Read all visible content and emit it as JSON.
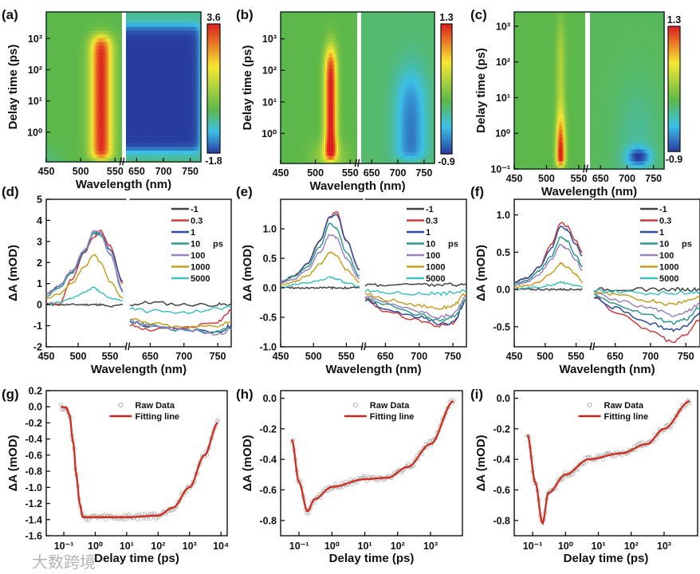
{
  "labels": {
    "wavelength": "Wavelength (nm)",
    "delay": "Delay time (ps)",
    "dA": "ΔA (mOD)",
    "ps": "ps",
    "raw": "Raw Data",
    "fit": "Fitting line",
    "watermark": "大数跨境"
  },
  "series_colors": {
    "-1": "#444444",
    "0.3": "#d63a3a",
    "1": "#2c4ea0",
    "10": "#2a9a88",
    "100": "#9a82c2",
    "1000": "#c8a020",
    "5000": "#3fc2c2"
  },
  "chart_data": [
    {
      "id": "a",
      "type": "heatmap",
      "panel_label": "(a)",
      "xlabel": "Wavelength (nm)",
      "ylabel": "Delay time (ps)",
      "xticks": [
        "450",
        "500",
        "550",
        "650",
        "700",
        "750"
      ],
      "xtick_values": [
        450,
        500,
        550,
        650,
        700,
        750
      ],
      "yticks": [
        "10⁰",
        "10¹",
        "10²",
        "10³"
      ],
      "ytick_values": [
        0,
        1,
        2,
        3
      ],
      "yscale": "log",
      "colorbar": {
        "max": 3.6,
        "min": -1.8,
        "max_label": "3.6",
        "min_label": "-1.8"
      }
    },
    {
      "id": "b",
      "type": "heatmap",
      "panel_label": "(b)",
      "xlabel": "Wavelength (nm)",
      "ylabel": "Delay time (ps)",
      "xticks": [
        "450",
        "500",
        "550",
        "650",
        "700",
        "750"
      ],
      "xtick_values": [
        450,
        500,
        550,
        650,
        700,
        750
      ],
      "yticks": [
        "10⁰",
        "10¹",
        "10²",
        "10³"
      ],
      "ytick_values": [
        0,
        1,
        2,
        3
      ],
      "yscale": "log",
      "colorbar": {
        "max": 1.3,
        "min": -0.9,
        "max_label": "1.3",
        "min_label": "-0.9"
      }
    },
    {
      "id": "c",
      "type": "heatmap",
      "panel_label": "(c)",
      "xlabel": "Wavelength (nm)",
      "ylabel": "Delay time (ps)",
      "xticks": [
        "450",
        "500",
        "550",
        "650",
        "700",
        "750"
      ],
      "xtick_values": [
        450,
        500,
        550,
        650,
        700,
        750
      ],
      "yticks": [
        "10⁻¹",
        "10⁰",
        "10¹",
        "10²",
        "10³"
      ],
      "ytick_values": [
        -1,
        0,
        1,
        2,
        3
      ],
      "yscale": "log",
      "colorbar": {
        "max": 1.3,
        "min": -0.9,
        "max_label": "1.3",
        "min_label": "-0.9"
      }
    },
    {
      "id": "d",
      "type": "line",
      "panel_label": "(d)",
      "xlabel": "Wavelength (nm)",
      "ylabel": "ΔA (mOD)",
      "ylim": [
        -2,
        5
      ],
      "xticks": [
        "450",
        "500",
        "550",
        "650",
        "700",
        "750"
      ],
      "xtick_values": [
        450,
        500,
        550,
        650,
        700,
        750
      ],
      "yticks": [
        "-2",
        "-1",
        "0",
        "1",
        "2",
        "3",
        "4",
        "5"
      ],
      "ytick_values": [
        -2,
        -1,
        0,
        1,
        2,
        3,
        4,
        5
      ],
      "legend_unit": "ps",
      "legend_position": "top-right",
      "x_left": [
        450,
        470,
        490,
        510,
        525,
        535,
        550,
        570
      ],
      "x_right": [
        620,
        650,
        700,
        750,
        770
      ],
      "series": [
        {
          "name": "-1",
          "left": [
            0,
            0,
            0,
            0,
            0,
            0,
            -0.1,
            0
          ],
          "right": [
            0,
            0.1,
            0,
            0,
            0
          ]
        },
        {
          "name": "0.3",
          "left": [
            0.1,
            0,
            1.2,
            2.5,
            3.2,
            3.5,
            2.8,
            1.0
          ],
          "right": [
            -1,
            -1.2,
            -1.1,
            -0.8,
            -0.3
          ]
        },
        {
          "name": "1",
          "left": [
            0.5,
            0.9,
            1.5,
            2.5,
            3.4,
            3.4,
            2.6,
            1.1
          ],
          "right": [
            -0.8,
            -1,
            -1.2,
            -1.3,
            -1.0
          ]
        },
        {
          "name": "10",
          "left": [
            0.4,
            0.8,
            1.5,
            2.6,
            3.4,
            3.3,
            2.4,
            0.6
          ],
          "right": [
            -0.8,
            -1,
            -1.2,
            -1.3,
            -1.1
          ]
        },
        {
          "name": "100",
          "left": [
            0.5,
            0.9,
            1.6,
            2.6,
            3.5,
            3.4,
            2.4,
            0.7
          ],
          "right": [
            -0.8,
            -1,
            -1.2,
            -1.4,
            -1.2
          ]
        },
        {
          "name": "1000",
          "left": [
            0.3,
            0.5,
            1.0,
            1.8,
            2.4,
            2.0,
            1.1,
            0.3
          ],
          "right": [
            -0.7,
            -0.9,
            -1.1,
            -1.0,
            -0.8
          ]
        },
        {
          "name": "5000",
          "left": [
            0,
            0.1,
            0.3,
            0.6,
            0.8,
            0.6,
            0.3,
            0.2
          ],
          "right": [
            -0.2,
            -0.3,
            -0.4,
            -0.2,
            -0.1
          ]
        }
      ]
    },
    {
      "id": "e",
      "type": "line",
      "panel_label": "(e)",
      "xlabel": "Wavelength (nm)",
      "ylabel": "ΔA (mOD)",
      "ylim": [
        -1,
        1.5
      ],
      "xticks": [
        "450",
        "500",
        "550",
        "650",
        "700",
        "750"
      ],
      "xtick_values": [
        450,
        500,
        550,
        650,
        700,
        750
      ],
      "yticks": [
        "-1.0",
        "-0.5",
        "0.0",
        "0.5",
        "1.0"
      ],
      "ytick_values": [
        -1,
        -0.5,
        0,
        0.5,
        1
      ],
      "legend_unit": "ps",
      "legend_position": "top-right",
      "x_left": [
        450,
        470,
        490,
        510,
        525,
        535,
        550,
        570
      ],
      "x_right": [
        620,
        650,
        700,
        730,
        750,
        770
      ],
      "series": [
        {
          "name": "-1",
          "left": [
            0,
            0,
            0,
            0,
            0,
            0,
            0,
            0
          ],
          "right": [
            0.05,
            0.05,
            0.05,
            0.05,
            0.05,
            0.05
          ]
        },
        {
          "name": "0.3",
          "left": [
            0.1,
            0.2,
            0.4,
            0.8,
            1.2,
            1.3,
            0.8,
            0.3
          ],
          "right": [
            -0.2,
            -0.4,
            -0.55,
            -0.65,
            -0.6,
            -0.2
          ]
        },
        {
          "name": "1",
          "left": [
            0.1,
            0.2,
            0.4,
            0.8,
            1.2,
            1.25,
            0.8,
            0.3
          ],
          "right": [
            -0.2,
            -0.35,
            -0.5,
            -0.6,
            -0.6,
            -0.2
          ]
        },
        {
          "name": "10",
          "left": [
            0.1,
            0.2,
            0.35,
            0.7,
            1.1,
            1.0,
            0.6,
            0.2
          ],
          "right": [
            -0.15,
            -0.3,
            -0.45,
            -0.55,
            -0.5,
            -0.2
          ]
        },
        {
          "name": "100",
          "left": [
            0.1,
            0.15,
            0.3,
            0.6,
            0.9,
            0.85,
            0.5,
            0.15
          ],
          "right": [
            -0.15,
            -0.25,
            -0.4,
            -0.5,
            -0.45,
            -0.15
          ]
        },
        {
          "name": "1000",
          "left": [
            0.05,
            0.1,
            0.2,
            0.4,
            0.6,
            0.55,
            0.3,
            0.1
          ],
          "right": [
            -0.1,
            -0.2,
            -0.3,
            -0.35,
            -0.3,
            -0.1
          ]
        },
        {
          "name": "5000",
          "left": [
            0,
            0.05,
            0.08,
            0.12,
            0.18,
            0.15,
            0.08,
            0.03
          ],
          "right": [
            -0.05,
            -0.08,
            -0.1,
            -0.1,
            -0.08,
            -0.05
          ]
        }
      ]
    },
    {
      "id": "f",
      "type": "line",
      "panel_label": "(f)",
      "xlabel": "Wavelength (nm)",
      "ylabel": "ΔA (mOD)",
      "ylim": [
        -0.77,
        1.21
      ],
      "xticks": [
        "450",
        "500",
        "550",
        "650",
        "700",
        "750"
      ],
      "xtick_values": [
        450,
        500,
        550,
        650,
        700,
        750
      ],
      "yticks": [
        "-0.5",
        "0.0",
        "0.5",
        "1.0"
      ],
      "ytick_values": [
        -0.5,
        0,
        0.5,
        1
      ],
      "legend_unit": "ps",
      "legend_position": "top-right",
      "x_left": [
        450,
        470,
        490,
        510,
        525,
        535,
        550,
        560
      ],
      "x_right": [
        620,
        650,
        700,
        730,
        750,
        770
      ],
      "series": [
        {
          "name": "-1",
          "left": [
            0,
            0,
            0,
            0,
            0,
            0,
            0,
            0
          ],
          "right": [
            0,
            0,
            0,
            0,
            0,
            0
          ]
        },
        {
          "name": "0.3",
          "left": [
            0.1,
            0.15,
            0.3,
            0.6,
            0.9,
            0.85,
            0.65,
            0.5
          ],
          "right": [
            -0.1,
            -0.3,
            -0.55,
            -0.7,
            -0.6,
            -0.4
          ]
        },
        {
          "name": "1",
          "left": [
            0.1,
            0.15,
            0.3,
            0.55,
            0.85,
            0.8,
            0.6,
            0.45
          ],
          "right": [
            -0.1,
            -0.25,
            -0.45,
            -0.55,
            -0.5,
            -0.3
          ]
        },
        {
          "name": "10",
          "left": [
            0.08,
            0.12,
            0.25,
            0.45,
            0.7,
            0.65,
            0.45,
            0.3
          ],
          "right": [
            -0.08,
            -0.2,
            -0.35,
            -0.45,
            -0.4,
            -0.25
          ]
        },
        {
          "name": "100",
          "left": [
            0.05,
            0.1,
            0.2,
            0.4,
            0.6,
            0.55,
            0.4,
            0.25
          ],
          "right": [
            -0.05,
            -0.15,
            -0.25,
            -0.35,
            -0.3,
            -0.2
          ]
        },
        {
          "name": "1000",
          "left": [
            0.03,
            0.05,
            0.1,
            0.22,
            0.35,
            0.3,
            0.2,
            0.1
          ],
          "right": [
            -0.03,
            -0.08,
            -0.15,
            -0.2,
            -0.15,
            -0.1
          ]
        },
        {
          "name": "5000",
          "left": [
            0,
            0.02,
            0.03,
            0.06,
            0.1,
            0.08,
            0.05,
            0.03
          ],
          "right": [
            -0.02,
            -0.03,
            -0.05,
            -0.05,
            -0.04,
            -0.03
          ]
        }
      ]
    },
    {
      "id": "g",
      "type": "scatter",
      "panel_label": "(g)",
      "xlabel": "Delay time (ps)",
      "ylabel": "ΔA (mOD)",
      "xscale": "log",
      "ylim": [
        -1.6,
        0.2
      ],
      "xticks": [
        "10⁻¹",
        "10⁰",
        "10¹",
        "10²",
        "10³",
        "10⁴"
      ],
      "xtick_values": [
        -1,
        0,
        1,
        2,
        3,
        4
      ],
      "yticks": [
        "-1.6",
        "-1.4",
        "-1.2",
        "-1.0",
        "-0.8",
        "-0.6",
        "-0.4",
        "-0.2",
        "0.0",
        "0.2"
      ],
      "ytick_values": [
        -1.6,
        -1.4,
        -1.2,
        -1.0,
        -0.8,
        -0.6,
        -0.4,
        -0.2,
        0,
        0.2
      ],
      "legend": [
        "Raw Data",
        "Fitting line"
      ],
      "legend_position": "top",
      "fit_x": [
        0.08,
        0.12,
        0.15,
        0.2,
        0.25,
        0.32,
        0.4,
        1,
        10,
        100,
        300,
        1000,
        3000,
        8000
      ],
      "fit_y": [
        0,
        -0.01,
        -0.1,
        -0.45,
        -0.85,
        -1.2,
        -1.37,
        -1.37,
        -1.37,
        -1.35,
        -1.25,
        -1.0,
        -0.6,
        -0.2
      ]
    },
    {
      "id": "h",
      "type": "scatter",
      "panel_label": "(h)",
      "xlabel": "Delay time (ps)",
      "ylabel": "ΔA (mOD)",
      "xscale": "log",
      "ylim": [
        -0.9,
        0.05
      ],
      "xticks": [
        "10⁻¹",
        "10⁰",
        "10¹",
        "10²",
        "10³"
      ],
      "xtick_values": [
        -1,
        0,
        1,
        2,
        3
      ],
      "yticks": [
        "-0.8",
        "-0.6",
        "-0.4",
        "-0.2",
        "0.0"
      ],
      "ytick_values": [
        -0.8,
        -0.6,
        -0.4,
        -0.2,
        0
      ],
      "legend": [
        "Raw Data",
        "Fitting line"
      ],
      "legend_position": "top",
      "fit_x": [
        0.06,
        0.1,
        0.18,
        0.3,
        1,
        10,
        50,
        200,
        1000,
        5000
      ],
      "fit_y": [
        -0.27,
        -0.55,
        -0.74,
        -0.66,
        -0.58,
        -0.53,
        -0.52,
        -0.45,
        -0.3,
        -0.02
      ]
    },
    {
      "id": "i",
      "type": "scatter",
      "panel_label": "(i)",
      "xlabel": "Delay time (ps)",
      "ylabel": "ΔA (mOD)",
      "xscale": "log",
      "ylim": [
        -0.9,
        0.05
      ],
      "xticks": [
        "10⁻¹",
        "10⁰",
        "10¹",
        "10²",
        "10³"
      ],
      "xtick_values": [
        -1,
        0,
        1,
        2,
        3
      ],
      "yticks": [
        "-0.8",
        "-0.6",
        "-0.4",
        "-0.2",
        "0.0"
      ],
      "ytick_values": [
        -0.8,
        -0.6,
        -0.4,
        -0.2,
        0
      ],
      "legend": [
        "Raw Data",
        "Fitting line"
      ],
      "legend_position": "top",
      "fit_x": [
        0.07,
        0.12,
        0.2,
        0.3,
        1,
        5,
        50,
        300,
        1000,
        6000
      ],
      "fit_y": [
        -0.24,
        -0.55,
        -0.82,
        -0.62,
        -0.5,
        -0.4,
        -0.36,
        -0.3,
        -0.2,
        -0.02
      ]
    }
  ]
}
